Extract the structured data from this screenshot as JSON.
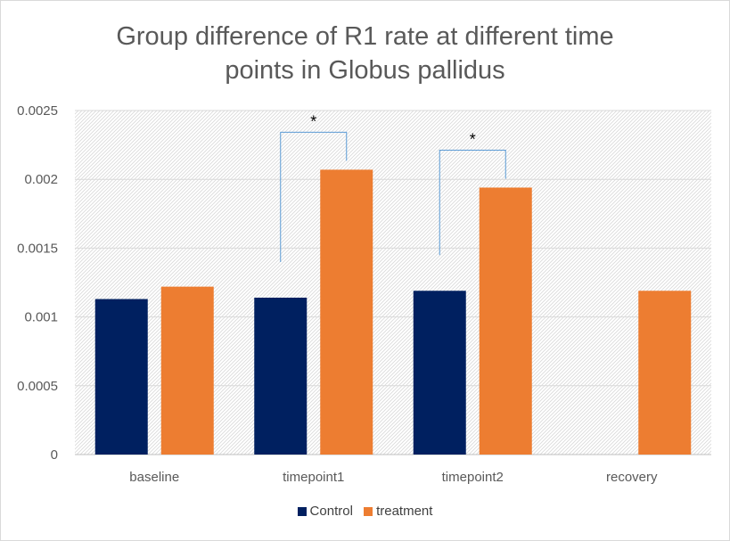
{
  "chart_data": {
    "type": "bar",
    "title": "Group difference of R1 rate at different time points in Globus pallidus",
    "title_line1": "Group difference of R1 rate at different time",
    "title_line2": "points in Globus pallidus",
    "categories": [
      "baseline",
      "timepoint1",
      "timepoint2",
      "recovery"
    ],
    "series": [
      {
        "name": "Control",
        "color": "#002060",
        "values": [
          0.00113,
          0.00114,
          0.00119,
          null
        ]
      },
      {
        "name": "treatment",
        "color": "#ED7D31",
        "values": [
          0.00122,
          0.00207,
          0.00194,
          0.00119
        ]
      }
    ],
    "ylim": [
      0,
      0.0025
    ],
    "yticks": [
      0,
      0.0005,
      0.001,
      0.0015,
      0.002,
      0.0025
    ],
    "ytick_labels": [
      "0",
      "0.0005",
      "0.001",
      "0.0015",
      "0.002",
      "0.0025"
    ],
    "grid": true,
    "legend_position": "bottom",
    "annotations": [
      {
        "text": "*",
        "category": "timepoint1",
        "bracket": true
      },
      {
        "text": "*",
        "category": "timepoint2",
        "bracket": true
      }
    ],
    "xlabel": "",
    "ylabel": ""
  }
}
